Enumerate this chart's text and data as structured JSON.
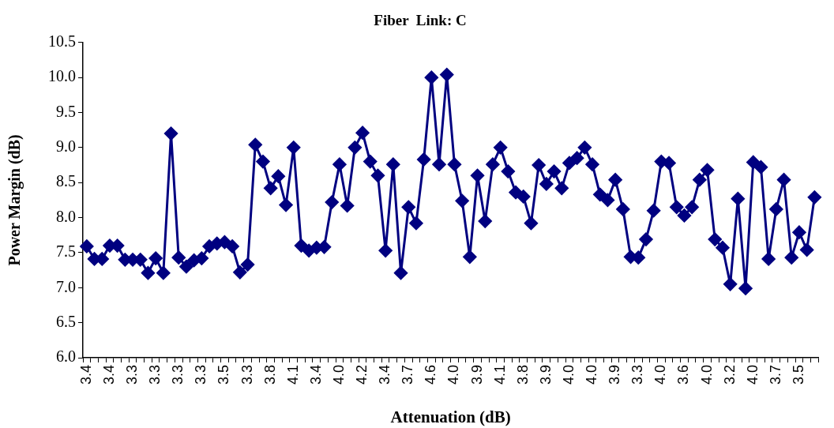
{
  "chart_data": {
    "type": "line",
    "title": "Fiber  Link: C",
    "xlabel": "Attenuation (dB)",
    "ylabel": "Power Margin (dB)",
    "categories": [
      "3.4",
      null,
      null,
      "3.4",
      null,
      null,
      "3.3",
      null,
      null,
      "3.3",
      null,
      null,
      "3.3",
      null,
      null,
      "3.3",
      null,
      null,
      "3.5",
      null,
      null,
      "3.3",
      null,
      null,
      "3.8",
      null,
      null,
      "4.1",
      null,
      null,
      "3.4",
      null,
      null,
      "4.0",
      null,
      null,
      "4.2",
      null,
      null,
      "3.4",
      null,
      null,
      "3.7",
      null,
      null,
      "4.6",
      null,
      null,
      "4.0",
      null,
      null,
      "3.9",
      null,
      null,
      "4.1",
      null,
      null,
      "3.8",
      null,
      null,
      "3.9",
      null,
      null,
      "4.0",
      null,
      null,
      "4.0",
      null,
      null,
      "3.9",
      null,
      null,
      "3.3",
      null,
      null,
      "4.0",
      null,
      null,
      "3.6",
      null,
      null,
      "4.0",
      null,
      null,
      "3.2",
      null,
      null,
      "4.0",
      null,
      null,
      "3.7",
      null,
      null,
      "3.5",
      null,
      null
    ],
    "series": [
      {
        "color": "#000080",
        "values": [
          7.59,
          7.41,
          7.41,
          7.6,
          7.6,
          7.4,
          7.4,
          7.4,
          7.21,
          7.42,
          7.21,
          9.2,
          7.43,
          7.3,
          7.39,
          7.42,
          7.59,
          7.63,
          7.65,
          7.59,
          7.22,
          7.33,
          9.04,
          8.8,
          8.42,
          8.59,
          8.18,
          9.0,
          7.6,
          7.53,
          7.57,
          7.58,
          8.22,
          8.76,
          8.17,
          9.0,
          9.21,
          8.8,
          8.6,
          7.53,
          8.76,
          7.21,
          8.15,
          7.92,
          8.83,
          10.0,
          8.76,
          10.04,
          8.76,
          8.24,
          7.44,
          8.6,
          7.95,
          8.76,
          9.0,
          8.66,
          8.36,
          8.3,
          7.92,
          8.75,
          8.48,
          8.66,
          8.42,
          8.78,
          8.85,
          9.0,
          8.76,
          8.33,
          8.25,
          8.54,
          8.12,
          7.44,
          7.43,
          7.69,
          8.1,
          8.8,
          8.78,
          8.15,
          8.03,
          8.15,
          8.54,
          8.68,
          7.69,
          7.57,
          7.05,
          8.27,
          6.99,
          8.79,
          8.72,
          7.41,
          8.12,
          8.54,
          7.43,
          7.79,
          7.54,
          8.29
        ]
      }
    ],
    "ylim": [
      6,
      10.5
    ],
    "yticks": [
      {
        "value": 6,
        "label": "6.0"
      },
      {
        "value": 6.5,
        "label": "6.5"
      },
      {
        "value": 7,
        "label": "7.0"
      },
      {
        "value": 7.5,
        "label": "7.5"
      },
      {
        "value": 8,
        "label": "8.0"
      },
      {
        "value": 8.5,
        "label": "8.5"
      },
      {
        "value": 9,
        "label": "9.0"
      },
      {
        "value": 9.5,
        "label": "9.5"
      },
      {
        "value": 10,
        "label": "10.0"
      },
      {
        "value": 10.5,
        "label": "10.5"
      }
    ],
    "grid": false,
    "legend": false,
    "marker": "diamond",
    "line_style": "solid"
  }
}
